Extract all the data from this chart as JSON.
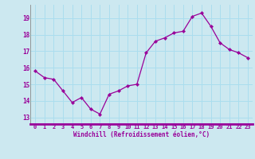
{
  "x": [
    0,
    1,
    2,
    3,
    4,
    5,
    6,
    7,
    8,
    9,
    10,
    11,
    12,
    13,
    14,
    15,
    16,
    17,
    18,
    19,
    20,
    21,
    22,
    23
  ],
  "y": [
    15.8,
    15.4,
    15.3,
    14.6,
    13.9,
    14.2,
    13.5,
    13.2,
    14.4,
    14.6,
    14.9,
    15.0,
    16.9,
    17.6,
    17.8,
    18.1,
    18.2,
    19.1,
    19.3,
    18.5,
    17.5,
    17.1,
    16.9,
    16.6
  ],
  "line_color": "#990099",
  "marker": "D",
  "marker_size": 2.2,
  "bg_color": "#cce8f0",
  "grid_color": "#aaddee",
  "xlabel": "Windchill (Refroidissement éolien,°C)",
  "xlabel_color": "#990099",
  "tick_color": "#990099",
  "ylabel_values": [
    13,
    14,
    15,
    16,
    17,
    18,
    19
  ],
  "ylim": [
    12.6,
    19.8
  ],
  "xlim": [
    -0.5,
    23.5
  ],
  "spine_color": "#888888",
  "bottom_spine_color": "#990099"
}
